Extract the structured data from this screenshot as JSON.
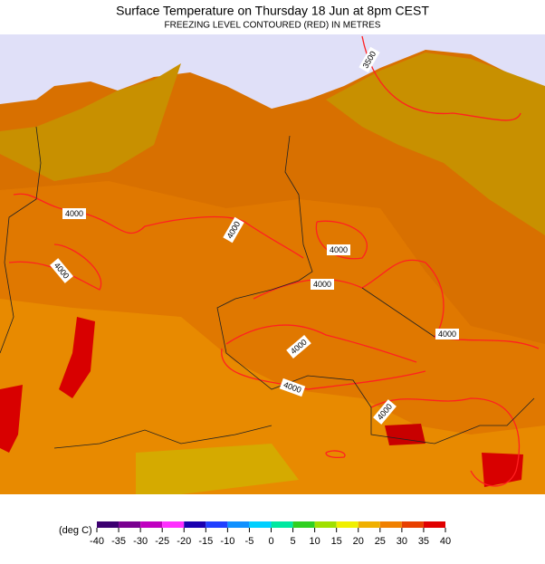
{
  "header": {
    "title": "Surface Temperature on Thursday 18 Jun at 8pm CEST",
    "subtitle": "FREEZING LEVEL CONTOURED (RED) IN METRES"
  },
  "map": {
    "contour_labels": [
      "3500",
      "4000",
      "4000",
      "4000",
      "4000",
      "4000",
      "4000",
      "4000",
      "4000",
      "4000"
    ]
  },
  "legend": {
    "label": "(deg C)",
    "ticks": [
      -40,
      -35,
      -30,
      -25,
      -20,
      -15,
      -10,
      -5,
      0,
      5,
      10,
      15,
      20,
      25,
      30,
      35,
      40
    ],
    "colors": [
      "#3c0070",
      "#7a0090",
      "#c000c0",
      "#ff30ff",
      "#1a00b0",
      "#2040ff",
      "#1090ff",
      "#00d0ff",
      "#00e8a0",
      "#30d020",
      "#a0e000",
      "#f0f000",
      "#f0b000",
      "#f08000",
      "#e84000",
      "#e00000"
    ]
  }
}
